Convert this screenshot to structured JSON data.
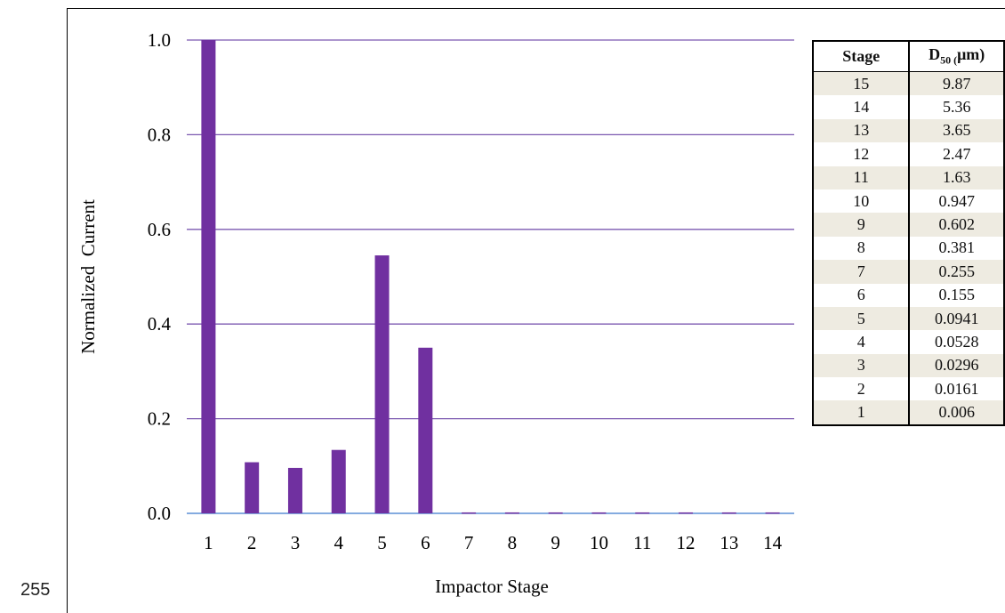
{
  "line_number": "255",
  "chart_data": {
    "type": "bar",
    "title": "",
    "xlabel": "Impactor Stage",
    "ylabel": "Normalized  Current",
    "categories": [
      "1",
      "2",
      "3",
      "4",
      "5",
      "6",
      "7",
      "8",
      "9",
      "10",
      "11",
      "12",
      "13",
      "14"
    ],
    "values": [
      1.0,
      0.108,
      0.096,
      0.134,
      0.545,
      0.35,
      0.002,
      0.002,
      0.002,
      0.002,
      0.002,
      0.002,
      0.002,
      0.002
    ],
    "ylim": [
      0,
      1.0
    ],
    "yticks": [
      "0.0",
      "0.2",
      "0.4",
      "0.6",
      "0.8",
      "1.0"
    ],
    "grid": true,
    "bar_color": "#7030a0",
    "grid_color": "#7b58b0",
    "axis_color": "#5b8fd6"
  },
  "table": {
    "header_stage": "Stage",
    "header_d50_main": "D",
    "header_d50_sub": "50 (",
    "header_d50_unit": "μm)",
    "rows": [
      {
        "stage": "15",
        "d50": "9.87"
      },
      {
        "stage": "14",
        "d50": "5.36"
      },
      {
        "stage": "13",
        "d50": "3.65"
      },
      {
        "stage": "12",
        "d50": "2.47"
      },
      {
        "stage": "11",
        "d50": "1.63"
      },
      {
        "stage": "10",
        "d50": "0.947"
      },
      {
        "stage": "9",
        "d50": "0.602"
      },
      {
        "stage": "8",
        "d50": "0.381"
      },
      {
        "stage": "7",
        "d50": "0.255"
      },
      {
        "stage": "6",
        "d50": "0.155"
      },
      {
        "stage": "5",
        "d50": "0.0941"
      },
      {
        "stage": "4",
        "d50": "0.0528"
      },
      {
        "stage": "3",
        "d50": "0.0296"
      },
      {
        "stage": "2",
        "d50": "0.0161"
      },
      {
        "stage": "1",
        "d50": "0.006"
      }
    ]
  }
}
